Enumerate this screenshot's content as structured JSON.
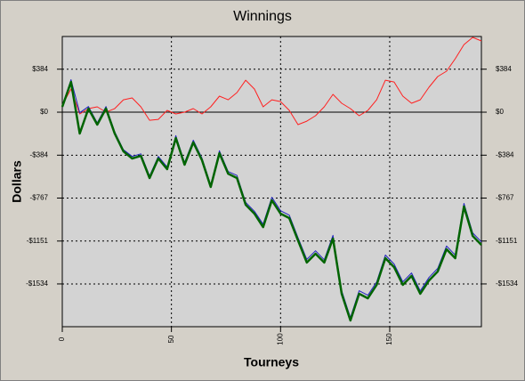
{
  "chart_data": {
    "type": "line",
    "title": "Winnings",
    "x_label": "Tourneys",
    "y_label": "Dollars",
    "x": [
      0,
      4,
      8,
      12,
      16,
      20,
      24,
      28,
      32,
      36,
      40,
      44,
      48,
      52,
      56,
      60,
      64,
      68,
      72,
      76,
      80,
      84,
      88,
      92,
      96,
      100,
      104,
      108,
      112,
      116,
      120,
      124,
      128,
      132,
      136,
      140,
      144,
      148,
      152,
      156,
      160,
      164,
      168,
      172,
      176,
      180,
      184,
      188,
      192
    ],
    "series": [
      {
        "color": "#ff2020",
        "width": 1,
        "values": [
          64,
          207,
          -16,
          32,
          48,
          0,
          32,
          111,
          127,
          48,
          -72,
          -64,
          16,
          -16,
          0,
          32,
          -16,
          48,
          143,
          111,
          175,
          286,
          207,
          48,
          111,
          95,
          16,
          -111,
          -80,
          -32,
          48,
          159,
          80,
          32,
          -32,
          16,
          111,
          286,
          270,
          143,
          80,
          111,
          223,
          318,
          366,
          477,
          604,
          668,
          636
        ]
      },
      {
        "color": "#2020c0",
        "width": 1,
        "values": [
          56,
          290,
          -5,
          50,
          -95,
          50,
          -175,
          -335,
          -395,
          -372,
          -570,
          -395,
          -490,
          -210,
          -450,
          -250,
          -410,
          -650,
          -345,
          -530,
          -565,
          -805,
          -885,
          -1000,
          -760,
          -880,
          -920,
          -1120,
          -1315,
          -1238,
          -1318,
          -1100,
          -1595,
          -1835,
          -1595,
          -1635,
          -1515,
          -1276,
          -1356,
          -1515,
          -1436,
          -1596,
          -1476,
          -1395,
          -1196,
          -1276,
          -815,
          -1078,
          -1158
        ]
      },
      {
        "color": "#006400",
        "width": 2.5,
        "values": [
          48,
          270,
          -191,
          32,
          -111,
          32,
          -191,
          -350,
          -413,
          -390,
          -588,
          -413,
          -509,
          -231,
          -469,
          -270,
          -429,
          -668,
          -366,
          -549,
          -588,
          -827,
          -906,
          -1026,
          -787,
          -906,
          -946,
          -1145,
          -1343,
          -1264,
          -1343,
          -1129,
          -1622,
          -1860,
          -1622,
          -1662,
          -1542,
          -1304,
          -1384,
          -1542,
          -1463,
          -1622,
          -1503,
          -1423,
          -1224,
          -1304,
          -843,
          -1105,
          -1185
        ]
      }
    ],
    "xlim": [
      0,
      192
    ],
    "xticks": [
      0,
      50,
      100,
      150
    ],
    "ylim": [
      -1916,
      676
    ],
    "yticks": [
      {
        "value": 384,
        "label": "$384"
      },
      {
        "value": 0,
        "label": "$0"
      },
      {
        "value": -384,
        "label": "-$384"
      },
      {
        "value": -767,
        "label": "-$767"
      },
      {
        "value": -1151,
        "label": "-$1151"
      },
      {
        "value": -1534,
        "label": "-$1534"
      }
    ],
    "grid": true
  }
}
